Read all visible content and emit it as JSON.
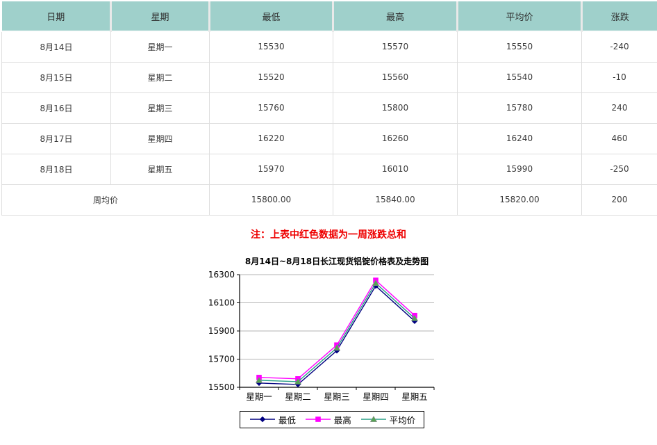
{
  "table": {
    "headers": [
      "日期",
      "星期",
      "最低",
      "最高",
      "平均价",
      "涨跌"
    ],
    "rows": [
      {
        "date": "8月14日",
        "weekday": "星期一",
        "low": "15530",
        "high": "15570",
        "avg": "15550",
        "change": "-240"
      },
      {
        "date": "8月15日",
        "weekday": "星期二",
        "low": "15520",
        "high": "15560",
        "avg": "15540",
        "change": "-10"
      },
      {
        "date": "8月16日",
        "weekday": "星期三",
        "low": "15760",
        "high": "15800",
        "avg": "15780",
        "change": "240"
      },
      {
        "date": "8月17日",
        "weekday": "星期四",
        "low": "16220",
        "high": "16260",
        "avg": "16240",
        "change": "460"
      },
      {
        "date": "8月18日",
        "weekday": "星期五",
        "low": "15970",
        "high": "16010",
        "avg": "15990",
        "change": "-250"
      }
    ],
    "summary": {
      "label": "周均价",
      "low": "15800.00",
      "high": "15840.00",
      "avg": "15820.00",
      "change": "200"
    }
  },
  "note": {
    "text": "注：上表中红色数据为一周涨跌总和"
  },
  "colors": {
    "header_bg": "#9fd0cb",
    "red": "#ee0000",
    "grid": "#b3b3b3",
    "axis": "#000000",
    "cell_border": "#dedede"
  },
  "chart_data": {
    "type": "line",
    "title": "8月14日~8月18日长江现货铝锭价格表及走势图",
    "categories": [
      "星期一",
      "星期二",
      "星期三",
      "星期四",
      "星期五"
    ],
    "series": [
      {
        "name": "最低",
        "values": [
          15530,
          15520,
          15760,
          16220,
          15970
        ],
        "color": "#000080",
        "marker": "diamond",
        "marker_color": "#000080"
      },
      {
        "name": "最高",
        "values": [
          15570,
          15560,
          15800,
          16260,
          16010
        ],
        "color": "#ff00ff",
        "marker": "square",
        "marker_color": "#ff00ff"
      },
      {
        "name": "平均价",
        "values": [
          15550,
          15540,
          15780,
          16240,
          15990
        ],
        "color": "#2aa086",
        "marker": "triangle",
        "marker_color": "#55a355"
      }
    ],
    "ylim": [
      15500,
      16300
    ],
    "yticks": [
      15500,
      15700,
      15900,
      16100,
      16300
    ],
    "grid": true,
    "legend_position": "bottom"
  }
}
